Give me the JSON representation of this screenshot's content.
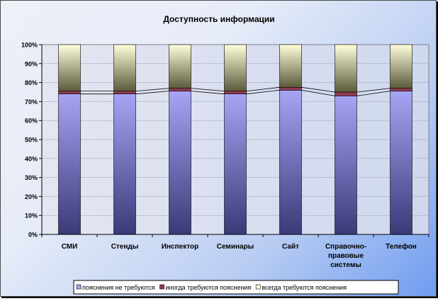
{
  "chart_data": {
    "type": "bar",
    "stacked": true,
    "percent_stacked": true,
    "title": "Доступность информации",
    "categories": [
      [
        "СМИ"
      ],
      [
        "Стенды"
      ],
      [
        "Инспектор"
      ],
      [
        "Семинары"
      ],
      [
        "Сайт"
      ],
      [
        "Справочно-",
        "правовые",
        "системы"
      ],
      [
        "Телефон"
      ]
    ],
    "y_ticks": [
      "0%",
      "10%",
      "20%",
      "30%",
      "40%",
      "50%",
      "60%",
      "70%",
      "80%",
      "90%",
      "100%"
    ],
    "ylim": [
      0,
      100
    ],
    "series": [
      {
        "name": "пояснения не требуются",
        "values": [
          74,
          74,
          75.5,
          74,
          76,
          73,
          75.5
        ]
      },
      {
        "name": "иногда требуются пояснения",
        "values": [
          1.5,
          1.5,
          1.5,
          1.5,
          1.5,
          2,
          1.5
        ]
      },
      {
        "name": "всегда требуются пояснения",
        "values": [
          24.5,
          24.5,
          23,
          24.5,
          22.5,
          25,
          23
        ]
      }
    ],
    "series_line_lines": true,
    "legend_position": "bottom",
    "colors": {
      "series0_top": "#a7a4f4",
      "series0_bottom": "#3a3a78",
      "series1": "#8e3a52",
      "series2_top": "#ffffdc",
      "series2_bottom": "#5b5b3c",
      "plot_bg": "#d9dfee"
    }
  }
}
